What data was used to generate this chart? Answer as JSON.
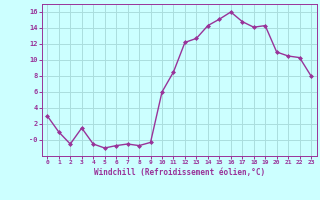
{
  "x": [
    0,
    1,
    2,
    3,
    4,
    5,
    6,
    7,
    8,
    9,
    10,
    11,
    12,
    13,
    14,
    15,
    16,
    17,
    18,
    19,
    20,
    21,
    22,
    23
  ],
  "y": [
    3,
    1,
    -0.5,
    1.5,
    -0.5,
    -1,
    -0.7,
    -0.5,
    -0.7,
    -0.3,
    6,
    8.5,
    12.2,
    12.7,
    14.3,
    15.1,
    16.0,
    14.8,
    14.1,
    14.3,
    11.0,
    10.5,
    10.3,
    8.0
  ],
  "line_color": "#993399",
  "marker": "D",
  "marker_size": 2,
  "linewidth": 1.0,
  "xlabel": "Windchill (Refroidissement éolien,°C)",
  "xlabel_color": "#993399",
  "background_color": "#ccffff",
  "grid_color": "#aadddd",
  "tick_color": "#993399",
  "xlim": [
    -0.5,
    23.5
  ],
  "ylim": [
    -2,
    17
  ],
  "yticks": [
    0,
    2,
    4,
    6,
    8,
    10,
    12,
    14,
    16
  ],
  "ytick_labels": [
    "-0",
    "2",
    "4",
    "6",
    "8",
    "10",
    "12",
    "14",
    "16"
  ],
  "xticks": [
    0,
    1,
    2,
    3,
    4,
    5,
    6,
    7,
    8,
    9,
    10,
    11,
    12,
    13,
    14,
    15,
    16,
    17,
    18,
    19,
    20,
    21,
    22,
    23
  ]
}
